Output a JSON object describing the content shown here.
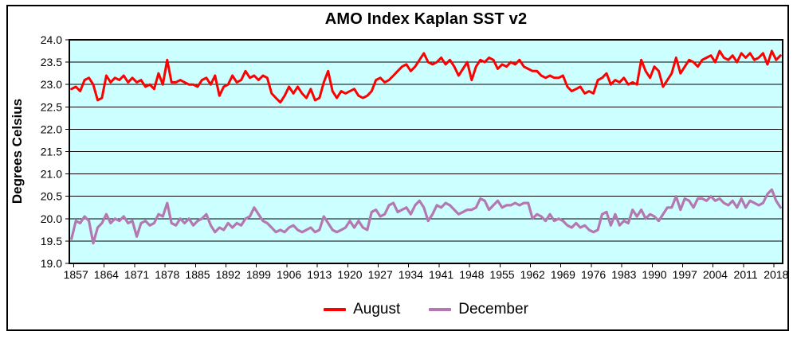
{
  "chart_data": {
    "type": "line",
    "title": "AMO Index Kaplan SST v2",
    "ylabel": "Degrees Celsius",
    "xlabel": "",
    "plot_bg": "#CCFFFF",
    "grid": true,
    "ylim": [
      19.0,
      24.0
    ],
    "ytick_step": 0.5,
    "yticks": [
      "24.0",
      "23.5",
      "23.0",
      "22.5",
      "22.0",
      "21.5",
      "21.0",
      "20.5",
      "20.0",
      "19.5",
      "19.0"
    ],
    "xticks": [
      1857,
      1864,
      1871,
      1878,
      1885,
      1892,
      1899,
      1906,
      1913,
      1920,
      1927,
      1934,
      1941,
      1948,
      1955,
      1962,
      1969,
      1976,
      1983,
      1990,
      1997,
      2004,
      2011,
      2018
    ],
    "legend": {
      "position": "bottom",
      "entries": [
        {
          "label": "August",
          "color": "#FF0000"
        },
        {
          "label": "December",
          "color": "#B478B0"
        }
      ]
    },
    "years": [
      1856,
      1857,
      1858,
      1859,
      1860,
      1861,
      1862,
      1863,
      1864,
      1865,
      1866,
      1867,
      1868,
      1869,
      1870,
      1871,
      1872,
      1873,
      1874,
      1875,
      1876,
      1877,
      1878,
      1879,
      1880,
      1881,
      1882,
      1883,
      1884,
      1885,
      1886,
      1887,
      1888,
      1889,
      1890,
      1891,
      1892,
      1893,
      1894,
      1895,
      1896,
      1897,
      1898,
      1899,
      1900,
      1901,
      1902,
      1903,
      1904,
      1905,
      1906,
      1907,
      1908,
      1909,
      1910,
      1911,
      1912,
      1913,
      1914,
      1915,
      1916,
      1917,
      1918,
      1919,
      1920,
      1921,
      1922,
      1923,
      1924,
      1925,
      1926,
      1927,
      1928,
      1929,
      1930,
      1931,
      1932,
      1933,
      1934,
      1935,
      1936,
      1937,
      1938,
      1939,
      1940,
      1941,
      1942,
      1943,
      1944,
      1945,
      1946,
      1947,
      1948,
      1949,
      1950,
      1951,
      1952,
      1953,
      1954,
      1955,
      1956,
      1957,
      1958,
      1959,
      1960,
      1961,
      1962,
      1963,
      1964,
      1965,
      1966,
      1967,
      1968,
      1969,
      1970,
      1971,
      1972,
      1973,
      1974,
      1975,
      1976,
      1977,
      1978,
      1979,
      1980,
      1981,
      1982,
      1983,
      1984,
      1985,
      1986,
      1987,
      1988,
      1989,
      1990,
      1991,
      1992,
      1993,
      1994,
      1995,
      1996,
      1997,
      1998,
      1999,
      2000,
      2001,
      2002,
      2003,
      2004,
      2005,
      2006,
      2007,
      2008,
      2009,
      2010,
      2011,
      2012,
      2013,
      2014,
      2015,
      2016,
      2017,
      2018,
      2019
    ],
    "series": [
      {
        "name": "August",
        "color": "#FF0000",
        "stroke_width": 3,
        "values": [
          22.9,
          22.95,
          22.85,
          23.1,
          23.15,
          23.0,
          22.65,
          22.7,
          23.2,
          23.05,
          23.15,
          23.1,
          23.2,
          23.05,
          23.15,
          23.05,
          23.1,
          22.95,
          23.0,
          22.9,
          23.25,
          23.0,
          23.55,
          23.05,
          23.05,
          23.1,
          23.05,
          23.0,
          23.0,
          22.95,
          23.1,
          23.15,
          23.0,
          23.2,
          22.75,
          22.95,
          23.0,
          23.2,
          23.05,
          23.1,
          23.3,
          23.15,
          23.2,
          23.1,
          23.2,
          23.15,
          22.8,
          22.7,
          22.6,
          22.75,
          22.95,
          22.8,
          22.95,
          22.8,
          22.7,
          22.9,
          22.65,
          22.7,
          23.05,
          23.3,
          22.85,
          22.7,
          22.85,
          22.8,
          22.85,
          22.9,
          22.75,
          22.7,
          22.75,
          22.85,
          23.1,
          23.15,
          23.05,
          23.1,
          23.2,
          23.3,
          23.4,
          23.45,
          23.3,
          23.4,
          23.55,
          23.7,
          23.5,
          23.45,
          23.5,
          23.6,
          23.45,
          23.55,
          23.4,
          23.2,
          23.35,
          23.5,
          23.1,
          23.4,
          23.55,
          23.5,
          23.6,
          23.55,
          23.35,
          23.45,
          23.4,
          23.5,
          23.45,
          23.55,
          23.4,
          23.35,
          23.3,
          23.3,
          23.2,
          23.15,
          23.2,
          23.15,
          23.15,
          23.2,
          22.95,
          22.85,
          22.9,
          22.95,
          22.8,
          22.85,
          22.8,
          23.1,
          23.15,
          23.25,
          23.0,
          23.1,
          23.05,
          23.15,
          23.0,
          23.05,
          23.0,
          23.55,
          23.3,
          23.15,
          23.4,
          23.3,
          22.95,
          23.1,
          23.25,
          23.6,
          23.25,
          23.4,
          23.55,
          23.5,
          23.4,
          23.55,
          23.6,
          23.65,
          23.5,
          23.75,
          23.6,
          23.55,
          23.65,
          23.5,
          23.7,
          23.6,
          23.7,
          23.55,
          23.6,
          23.7,
          23.45,
          23.75,
          23.55,
          23.65
        ]
      },
      {
        "name": "December",
        "color": "#B478B0",
        "stroke_width": 3.2,
        "values": [
          19.55,
          19.95,
          19.9,
          20.05,
          19.95,
          19.45,
          19.8,
          19.9,
          20.1,
          19.9,
          20.0,
          19.95,
          20.05,
          19.9,
          19.95,
          19.6,
          19.9,
          19.95,
          19.85,
          19.9,
          20.1,
          20.05,
          20.35,
          19.9,
          19.85,
          20.0,
          19.9,
          20.0,
          19.85,
          19.95,
          20.0,
          20.1,
          19.85,
          19.7,
          19.8,
          19.75,
          19.9,
          19.8,
          19.9,
          19.85,
          20.0,
          20.05,
          20.25,
          20.1,
          19.95,
          19.9,
          19.8,
          19.7,
          19.75,
          19.7,
          19.8,
          19.85,
          19.75,
          19.7,
          19.75,
          19.8,
          19.7,
          19.75,
          20.05,
          19.9,
          19.75,
          19.7,
          19.75,
          19.8,
          19.95,
          19.8,
          19.95,
          19.8,
          19.75,
          20.15,
          20.2,
          20.05,
          20.1,
          20.3,
          20.35,
          20.15,
          20.2,
          20.25,
          20.1,
          20.3,
          20.4,
          20.25,
          19.95,
          20.1,
          20.3,
          20.25,
          20.35,
          20.3,
          20.2,
          20.1,
          20.15,
          20.2,
          20.2,
          20.25,
          20.45,
          20.4,
          20.2,
          20.3,
          20.4,
          20.25,
          20.3,
          20.3,
          20.35,
          20.3,
          20.35,
          20.35,
          20.0,
          20.1,
          20.05,
          19.95,
          20.1,
          19.95,
          20.0,
          19.95,
          19.85,
          19.8,
          19.9,
          19.8,
          19.85,
          19.75,
          19.7,
          19.75,
          20.1,
          20.15,
          19.85,
          20.1,
          19.85,
          19.95,
          19.9,
          20.2,
          20.05,
          20.2,
          20.0,
          20.1,
          20.05,
          19.95,
          20.1,
          20.25,
          20.25,
          20.5,
          20.2,
          20.45,
          20.4,
          20.25,
          20.45,
          20.45,
          20.4,
          20.5,
          20.4,
          20.45,
          20.35,
          20.3,
          20.4,
          20.25,
          20.45,
          20.25,
          20.4,
          20.35,
          20.3,
          20.35,
          20.55,
          20.65,
          20.4,
          20.25
        ]
      }
    ]
  }
}
